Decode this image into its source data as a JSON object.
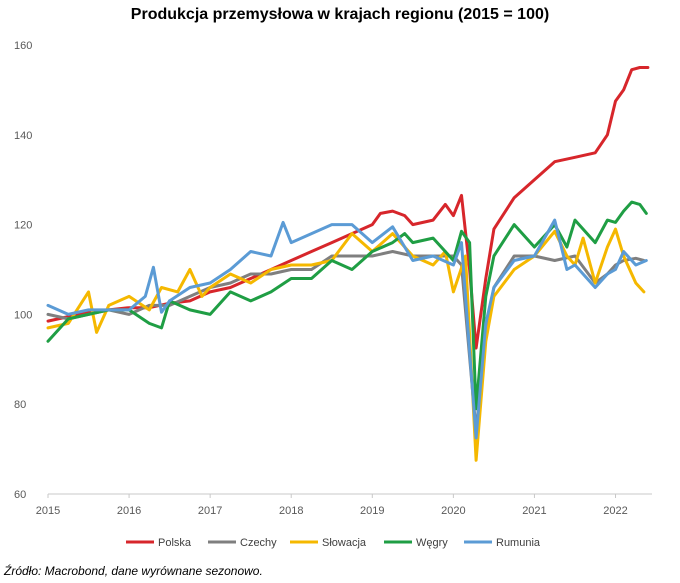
{
  "chart_data": {
    "type": "line",
    "title": "Produkcja przemysłowa w krajach regionu (2015 = 100)",
    "xlabel": "",
    "ylabel": "",
    "ylim": [
      60,
      160
    ],
    "yticks": [
      "60",
      "80",
      "100",
      "120",
      "140",
      "160"
    ],
    "xticks": [
      "2015",
      "2016",
      "2017",
      "2018",
      "2019",
      "2020",
      "2021",
      "2022"
    ],
    "grid": false,
    "legend_position": "bottom",
    "series": [
      {
        "name": "Polska",
        "color": "#d7262b",
        "points": [
          [
            2015.0,
            98.5
          ],
          [
            2015.25,
            99.5
          ],
          [
            2015.5,
            100.5
          ],
          [
            2015.75,
            101.0
          ],
          [
            2016.0,
            101.5
          ],
          [
            2016.25,
            101.5
          ],
          [
            2016.5,
            102.5
          ],
          [
            2016.75,
            103.0
          ],
          [
            2017.0,
            105.0
          ],
          [
            2017.25,
            106.0
          ],
          [
            2017.5,
            108.0
          ],
          [
            2017.75,
            110.0
          ],
          [
            2018.0,
            112.0
          ],
          [
            2018.25,
            114.0
          ],
          [
            2018.5,
            116.0
          ],
          [
            2018.75,
            118.0
          ],
          [
            2019.0,
            120.0
          ],
          [
            2019.1,
            122.5
          ],
          [
            2019.25,
            123.0
          ],
          [
            2019.4,
            122.0
          ],
          [
            2019.5,
            120.0
          ],
          [
            2019.75,
            121.0
          ],
          [
            2019.9,
            124.5
          ],
          [
            2020.0,
            122.0
          ],
          [
            2020.1,
            126.5
          ],
          [
            2020.2,
            110.0
          ],
          [
            2020.28,
            92.5
          ],
          [
            2020.4,
            108.0
          ],
          [
            2020.5,
            119.0
          ],
          [
            2020.75,
            126.0
          ],
          [
            2021.0,
            130.0
          ],
          [
            2021.25,
            134.0
          ],
          [
            2021.5,
            135.0
          ],
          [
            2021.75,
            136.0
          ],
          [
            2021.9,
            140.0
          ],
          [
            2022.0,
            147.5
          ],
          [
            2022.1,
            150.0
          ],
          [
            2022.2,
            154.5
          ],
          [
            2022.3,
            155.0
          ],
          [
            2022.4,
            155.0
          ]
        ]
      },
      {
        "name": "Czechy",
        "color": "#7f7f7f",
        "points": [
          [
            2015.0,
            100.0
          ],
          [
            2015.25,
            99.0
          ],
          [
            2015.5,
            100.0
          ],
          [
            2015.75,
            101.0
          ],
          [
            2016.0,
            100.0
          ],
          [
            2016.25,
            102.0
          ],
          [
            2016.5,
            102.0
          ],
          [
            2016.75,
            104.0
          ],
          [
            2017.0,
            106.0
          ],
          [
            2017.25,
            107.0
          ],
          [
            2017.5,
            109.0
          ],
          [
            2017.75,
            109.0
          ],
          [
            2018.0,
            110.0
          ],
          [
            2018.25,
            110.0
          ],
          [
            2018.5,
            113.0
          ],
          [
            2018.75,
            113.0
          ],
          [
            2019.0,
            113.0
          ],
          [
            2019.25,
            114.0
          ],
          [
            2019.5,
            113.0
          ],
          [
            2019.75,
            113.0
          ],
          [
            2020.0,
            113.0
          ],
          [
            2020.1,
            111.0
          ],
          [
            2020.28,
            74.0
          ],
          [
            2020.4,
            96.0
          ],
          [
            2020.5,
            106.0
          ],
          [
            2020.75,
            113.0
          ],
          [
            2021.0,
            113.0
          ],
          [
            2021.25,
            112.0
          ],
          [
            2021.5,
            113.0
          ],
          [
            2021.75,
            107.0
          ],
          [
            2021.9,
            109.0
          ],
          [
            2022.0,
            111.0
          ],
          [
            2022.1,
            112.0
          ],
          [
            2022.25,
            112.5
          ],
          [
            2022.35,
            112.0
          ]
        ]
      },
      {
        "name": "Słowacja",
        "color": "#f5b800",
        "points": [
          [
            2015.0,
            97.0
          ],
          [
            2015.25,
            98.0
          ],
          [
            2015.5,
            105.0
          ],
          [
            2015.6,
            96.0
          ],
          [
            2015.75,
            102.0
          ],
          [
            2016.0,
            104.0
          ],
          [
            2016.25,
            101.0
          ],
          [
            2016.4,
            106.0
          ],
          [
            2016.6,
            105.0
          ],
          [
            2016.75,
            110.0
          ],
          [
            2016.9,
            104.0
          ],
          [
            2017.0,
            106.0
          ],
          [
            2017.25,
            109.0
          ],
          [
            2017.5,
            107.0
          ],
          [
            2017.75,
            110.0
          ],
          [
            2018.0,
            111.0
          ],
          [
            2018.25,
            111.0
          ],
          [
            2018.5,
            112.0
          ],
          [
            2018.75,
            118.0
          ],
          [
            2019.0,
            114.0
          ],
          [
            2019.25,
            118.0
          ],
          [
            2019.5,
            113.0
          ],
          [
            2019.75,
            111.0
          ],
          [
            2019.9,
            114.0
          ],
          [
            2020.0,
            105.0
          ],
          [
            2020.15,
            113.0
          ],
          [
            2020.28,
            67.5
          ],
          [
            2020.4,
            94.0
          ],
          [
            2020.5,
            104.0
          ],
          [
            2020.75,
            110.0
          ],
          [
            2021.0,
            113.0
          ],
          [
            2021.25,
            118.5
          ],
          [
            2021.4,
            113.0
          ],
          [
            2021.5,
            111.0
          ],
          [
            2021.6,
            117.0
          ],
          [
            2021.75,
            107.0
          ],
          [
            2021.9,
            115.0
          ],
          [
            2022.0,
            119.0
          ],
          [
            2022.1,
            113.0
          ],
          [
            2022.25,
            107.0
          ],
          [
            2022.35,
            105.0
          ]
        ]
      },
      {
        "name": "Węgry",
        "color": "#1f9e44",
        "points": [
          [
            2015.0,
            94.0
          ],
          [
            2015.25,
            99.0
          ],
          [
            2015.5,
            100.0
          ],
          [
            2015.75,
            101.0
          ],
          [
            2016.0,
            101.0
          ],
          [
            2016.25,
            98.0
          ],
          [
            2016.4,
            97.0
          ],
          [
            2016.5,
            103.0
          ],
          [
            2016.75,
            101.0
          ],
          [
            2017.0,
            100.0
          ],
          [
            2017.25,
            105.0
          ],
          [
            2017.5,
            103.0
          ],
          [
            2017.75,
            105.0
          ],
          [
            2018.0,
            108.0
          ],
          [
            2018.25,
            108.0
          ],
          [
            2018.5,
            112.0
          ],
          [
            2018.75,
            110.0
          ],
          [
            2019.0,
            114.0
          ],
          [
            2019.25,
            116.0
          ],
          [
            2019.4,
            118.0
          ],
          [
            2019.5,
            116.0
          ],
          [
            2019.75,
            117.0
          ],
          [
            2019.9,
            114.0
          ],
          [
            2020.0,
            112.0
          ],
          [
            2020.1,
            118.5
          ],
          [
            2020.2,
            116.0
          ],
          [
            2020.28,
            79.0
          ],
          [
            2020.4,
            104.0
          ],
          [
            2020.5,
            113.0
          ],
          [
            2020.75,
            120.0
          ],
          [
            2021.0,
            115.0
          ],
          [
            2021.25,
            120.0
          ],
          [
            2021.4,
            115.0
          ],
          [
            2021.5,
            121.0
          ],
          [
            2021.75,
            116.0
          ],
          [
            2021.9,
            121.0
          ],
          [
            2022.0,
            120.5
          ],
          [
            2022.1,
            123.0
          ],
          [
            2022.2,
            125.0
          ],
          [
            2022.3,
            124.5
          ],
          [
            2022.38,
            122.5
          ]
        ]
      },
      {
        "name": "Rumunia",
        "color": "#5b9bd5",
        "points": [
          [
            2015.0,
            102.0
          ],
          [
            2015.25,
            100.0
          ],
          [
            2015.5,
            101.0
          ],
          [
            2015.75,
            101.0
          ],
          [
            2016.0,
            101.0
          ],
          [
            2016.2,
            104.0
          ],
          [
            2016.3,
            110.5
          ],
          [
            2016.4,
            100.5
          ],
          [
            2016.5,
            103.0
          ],
          [
            2016.75,
            106.0
          ],
          [
            2017.0,
            107.0
          ],
          [
            2017.25,
            110.0
          ],
          [
            2017.5,
            114.0
          ],
          [
            2017.75,
            113.0
          ],
          [
            2017.9,
            120.5
          ],
          [
            2018.0,
            116.0
          ],
          [
            2018.25,
            118.0
          ],
          [
            2018.5,
            120.0
          ],
          [
            2018.75,
            120.0
          ],
          [
            2019.0,
            116.0
          ],
          [
            2019.25,
            119.5
          ],
          [
            2019.5,
            112.0
          ],
          [
            2019.75,
            113.0
          ],
          [
            2020.0,
            111.0
          ],
          [
            2020.1,
            116.0
          ],
          [
            2020.28,
            72.5
          ],
          [
            2020.4,
            98.0
          ],
          [
            2020.5,
            106.0
          ],
          [
            2020.75,
            112.0
          ],
          [
            2021.0,
            113.0
          ],
          [
            2021.25,
            121.0
          ],
          [
            2021.4,
            110.0
          ],
          [
            2021.5,
            111.0
          ],
          [
            2021.75,
            106.0
          ],
          [
            2021.9,
            109.0
          ],
          [
            2022.0,
            110.0
          ],
          [
            2022.1,
            114.0
          ],
          [
            2022.25,
            111.0
          ],
          [
            2022.38,
            112.0
          ]
        ]
      }
    ]
  },
  "source_note": "Źródło: Macrobond, dane wyrównane sezonowo."
}
